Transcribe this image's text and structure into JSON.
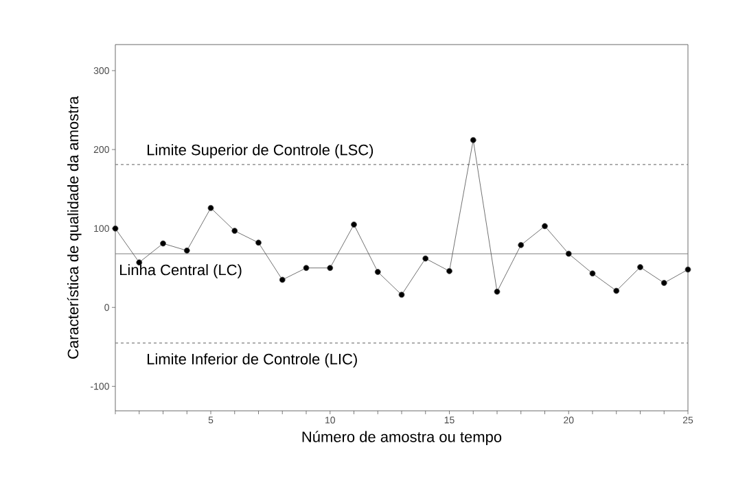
{
  "chart_data": {
    "type": "line",
    "xlabel": "Número de amostra ou tempo",
    "ylabel": "Característica de qualidade da amostra",
    "x": [
      1,
      2,
      3,
      4,
      5,
      6,
      7,
      8,
      9,
      10,
      11,
      12,
      13,
      14,
      15,
      16,
      17,
      18,
      19,
      20,
      21,
      22,
      23,
      24,
      25
    ],
    "series": [
      {
        "color": "#000000",
        "values": [
          100,
          57,
          81,
          72,
          126,
          97,
          82,
          35,
          50,
          50,
          105,
          45,
          16,
          62,
          46,
          212,
          20,
          79,
          103,
          68,
          43,
          21,
          51,
          31,
          48
        ]
      }
    ],
    "marker": "circle",
    "line_style": "solid",
    "xlim": [
      1,
      25
    ],
    "ylim": [
      -131,
      333
    ],
    "xticks": [
      {
        "value": 1,
        "label": null
      },
      {
        "value": 2,
        "label": null
      },
      {
        "value": 3,
        "label": null
      },
      {
        "value": 4,
        "label": null
      },
      5,
      {
        "value": 6,
        "label": null
      },
      {
        "value": 7,
        "label": null
      },
      {
        "value": 8,
        "label": null
      },
      {
        "value": 9,
        "label": null
      },
      10,
      {
        "value": 11,
        "label": null
      },
      {
        "value": 12,
        "label": null
      },
      {
        "value": 13,
        "label": null
      },
      {
        "value": 14,
        "label": null
      },
      15,
      {
        "value": 16,
        "label": null
      },
      {
        "value": 17,
        "label": null
      },
      {
        "value": 18,
        "label": null
      },
      {
        "value": 19,
        "label": null
      },
      20,
      {
        "value": 21,
        "label": null
      },
      {
        "value": 22,
        "label": null
      },
      {
        "value": 23,
        "label": null
      },
      {
        "value": 24,
        "label": null
      },
      25
    ],
    "yticks": [
      -100,
      0,
      100,
      200,
      300
    ],
    "ref_lines": [
      {
        "axis": "y",
        "value": 181,
        "label": "Limite Superior de Controle (LSC)",
        "color": "#7f7f7f",
        "line_style": "dashed"
      },
      {
        "axis": "y",
        "value": 68,
        "label": "Linha Central (LC)",
        "color": "#7f7f7f",
        "line_style": "solid"
      },
      {
        "axis": "y",
        "value": -45,
        "label": "Limite Inferior de Controle (LIC)",
        "color": "#7f7f7f",
        "line_style": "dashed"
      }
    ]
  }
}
